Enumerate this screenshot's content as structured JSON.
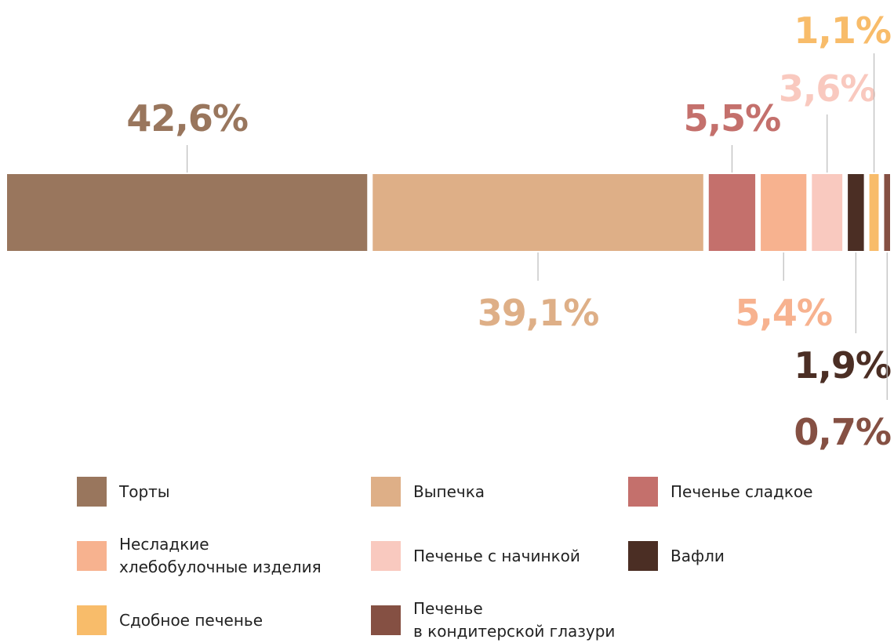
{
  "chart_data": {
    "type": "stacked-bar",
    "categories": [
      "Торты",
      "Выпечка",
      "Печенье сладкое",
      "Несладкие\nхлебобулочные изделия",
      "Печенье с начинкой",
      "Вафли",
      "Сдобное печенье",
      "Печенье\nв кондитерской глазури"
    ],
    "values": [
      42.6,
      39.1,
      5.5,
      5.4,
      3.6,
      1.9,
      1.1,
      0.7
    ],
    "value_labels": [
      "42,6%",
      "39,1%",
      "5,5%",
      "5,4%",
      "3,6%",
      "1,9%",
      "1,1%",
      "0,7%"
    ],
    "colors": [
      "#99765d",
      "#deaf87",
      "#c4706c",
      "#f7b28f",
      "#f9c9bf",
      "#4b2e24",
      "#f8bc6a",
      "#855043"
    ]
  }
}
